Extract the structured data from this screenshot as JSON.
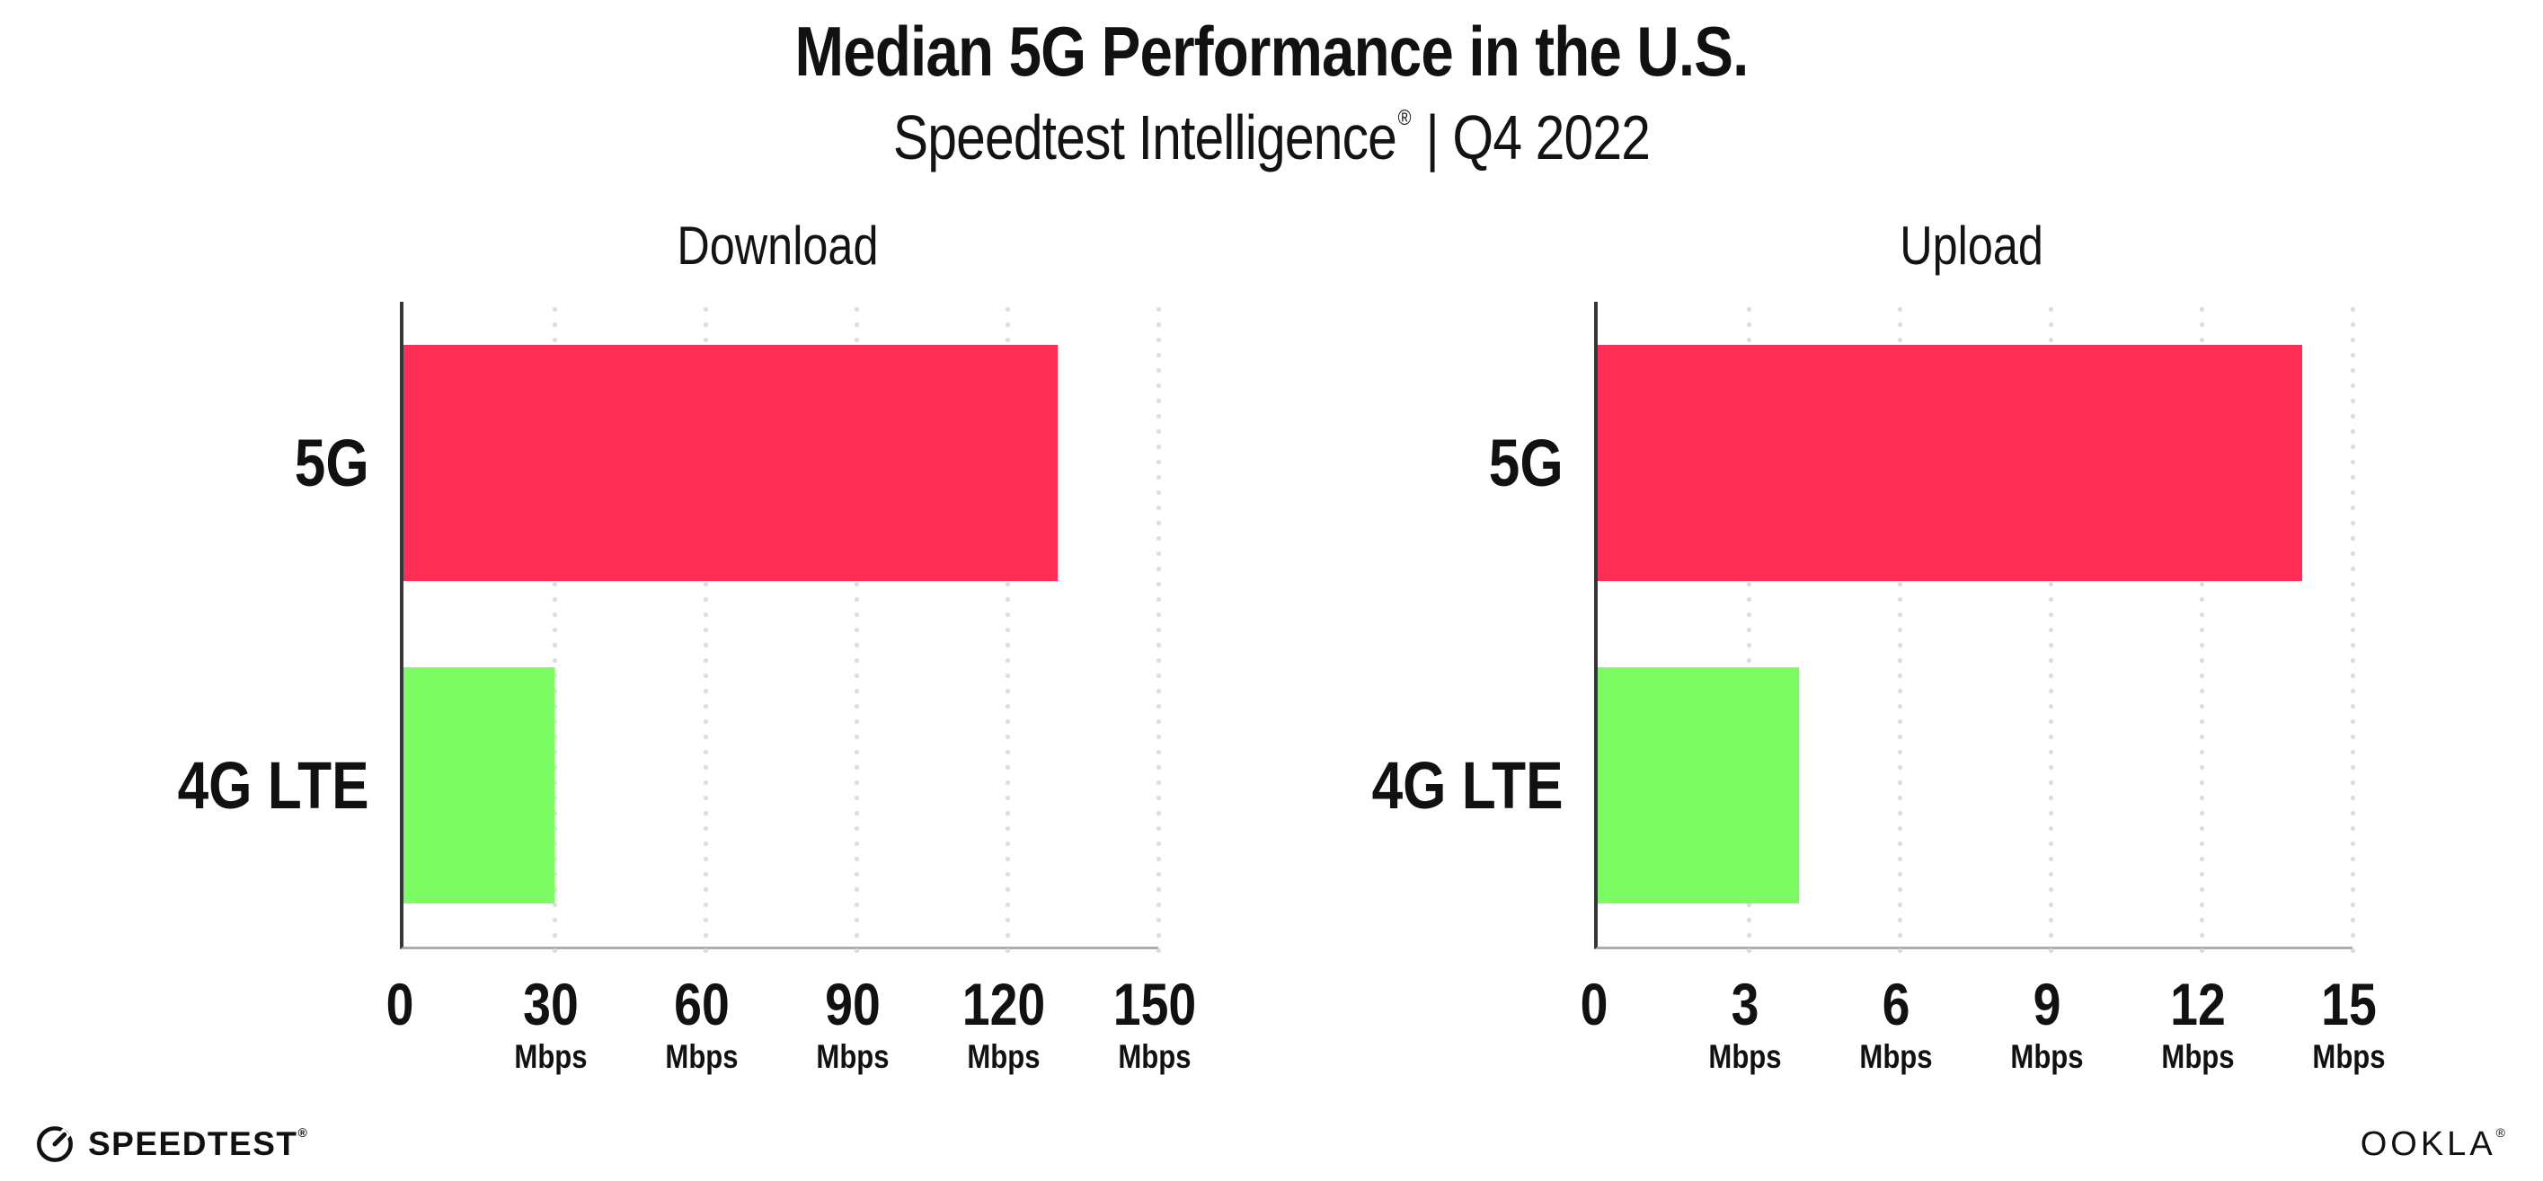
{
  "header": {
    "title": "Median 5G Performance in the U.S.",
    "subtitle_brand": "Speedtest Intelligence",
    "registered_mark": "®",
    "subtitle_rest": "| Q4 2022"
  },
  "chart_data": [
    {
      "type": "bar",
      "orientation": "horizontal",
      "title": "Download",
      "categories": [
        "5G",
        "4G LTE"
      ],
      "values": [
        130,
        30
      ],
      "unit": "Mbps",
      "xlim": [
        0,
        150
      ],
      "xticks": [
        0,
        30,
        60,
        90,
        120,
        150
      ],
      "bar_colors": [
        "#FF2E57",
        "#7DFB63"
      ],
      "grid": "dotted-vertical-at-each-tick",
      "legend": "none"
    },
    {
      "type": "bar",
      "orientation": "horizontal",
      "title": "Upload",
      "categories": [
        "5G",
        "4G LTE"
      ],
      "values": [
        14,
        4
      ],
      "unit": "Mbps",
      "xlim": [
        0,
        15
      ],
      "xticks": [
        0,
        3,
        6,
        9,
        12,
        15
      ],
      "bar_colors": [
        "#FF2E57",
        "#7DFB63"
      ],
      "grid": "dotted-vertical-at-each-tick",
      "legend": "none"
    }
  ],
  "footer": {
    "speedtest_icon": "speedometer-gauge-icon",
    "speedtest_wordmark": "SPEEDTEST",
    "ookla_wordmark": "OOKLA",
    "registered_mark": "®"
  },
  "colors": {
    "bar_5g": "#FF2E57",
    "bar_4g_lte": "#7DFB63",
    "gridline": "#DBDBE5",
    "axis_spine": "#35353D",
    "axis_baseline": "#ABABB3",
    "text": "#111111",
    "background": "#FFFFFF"
  }
}
